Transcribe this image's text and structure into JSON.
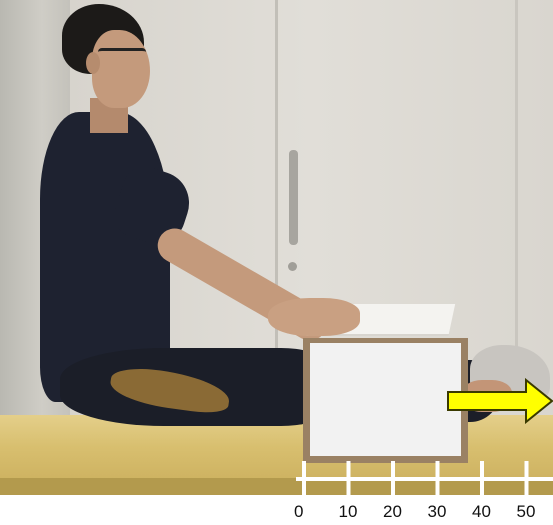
{
  "scene": {
    "objects": [
      "wall-left",
      "cabinet",
      "door-handle",
      "mat",
      "person",
      "paper-sheets",
      "box",
      "yellow-arrow",
      "measurement-scale"
    ]
  },
  "arrow": {
    "color": "#ffff00",
    "outline": "#3a3a00",
    "direction": "right"
  },
  "scale": {
    "labels": [
      "0",
      "10",
      "20",
      "30",
      "40",
      "50"
    ],
    "line_color": "#ffffff"
  },
  "colors": {
    "mat": "#d8bf6f",
    "box_face": "#f2f2f2",
    "box_edge": "#9a8164"
  }
}
